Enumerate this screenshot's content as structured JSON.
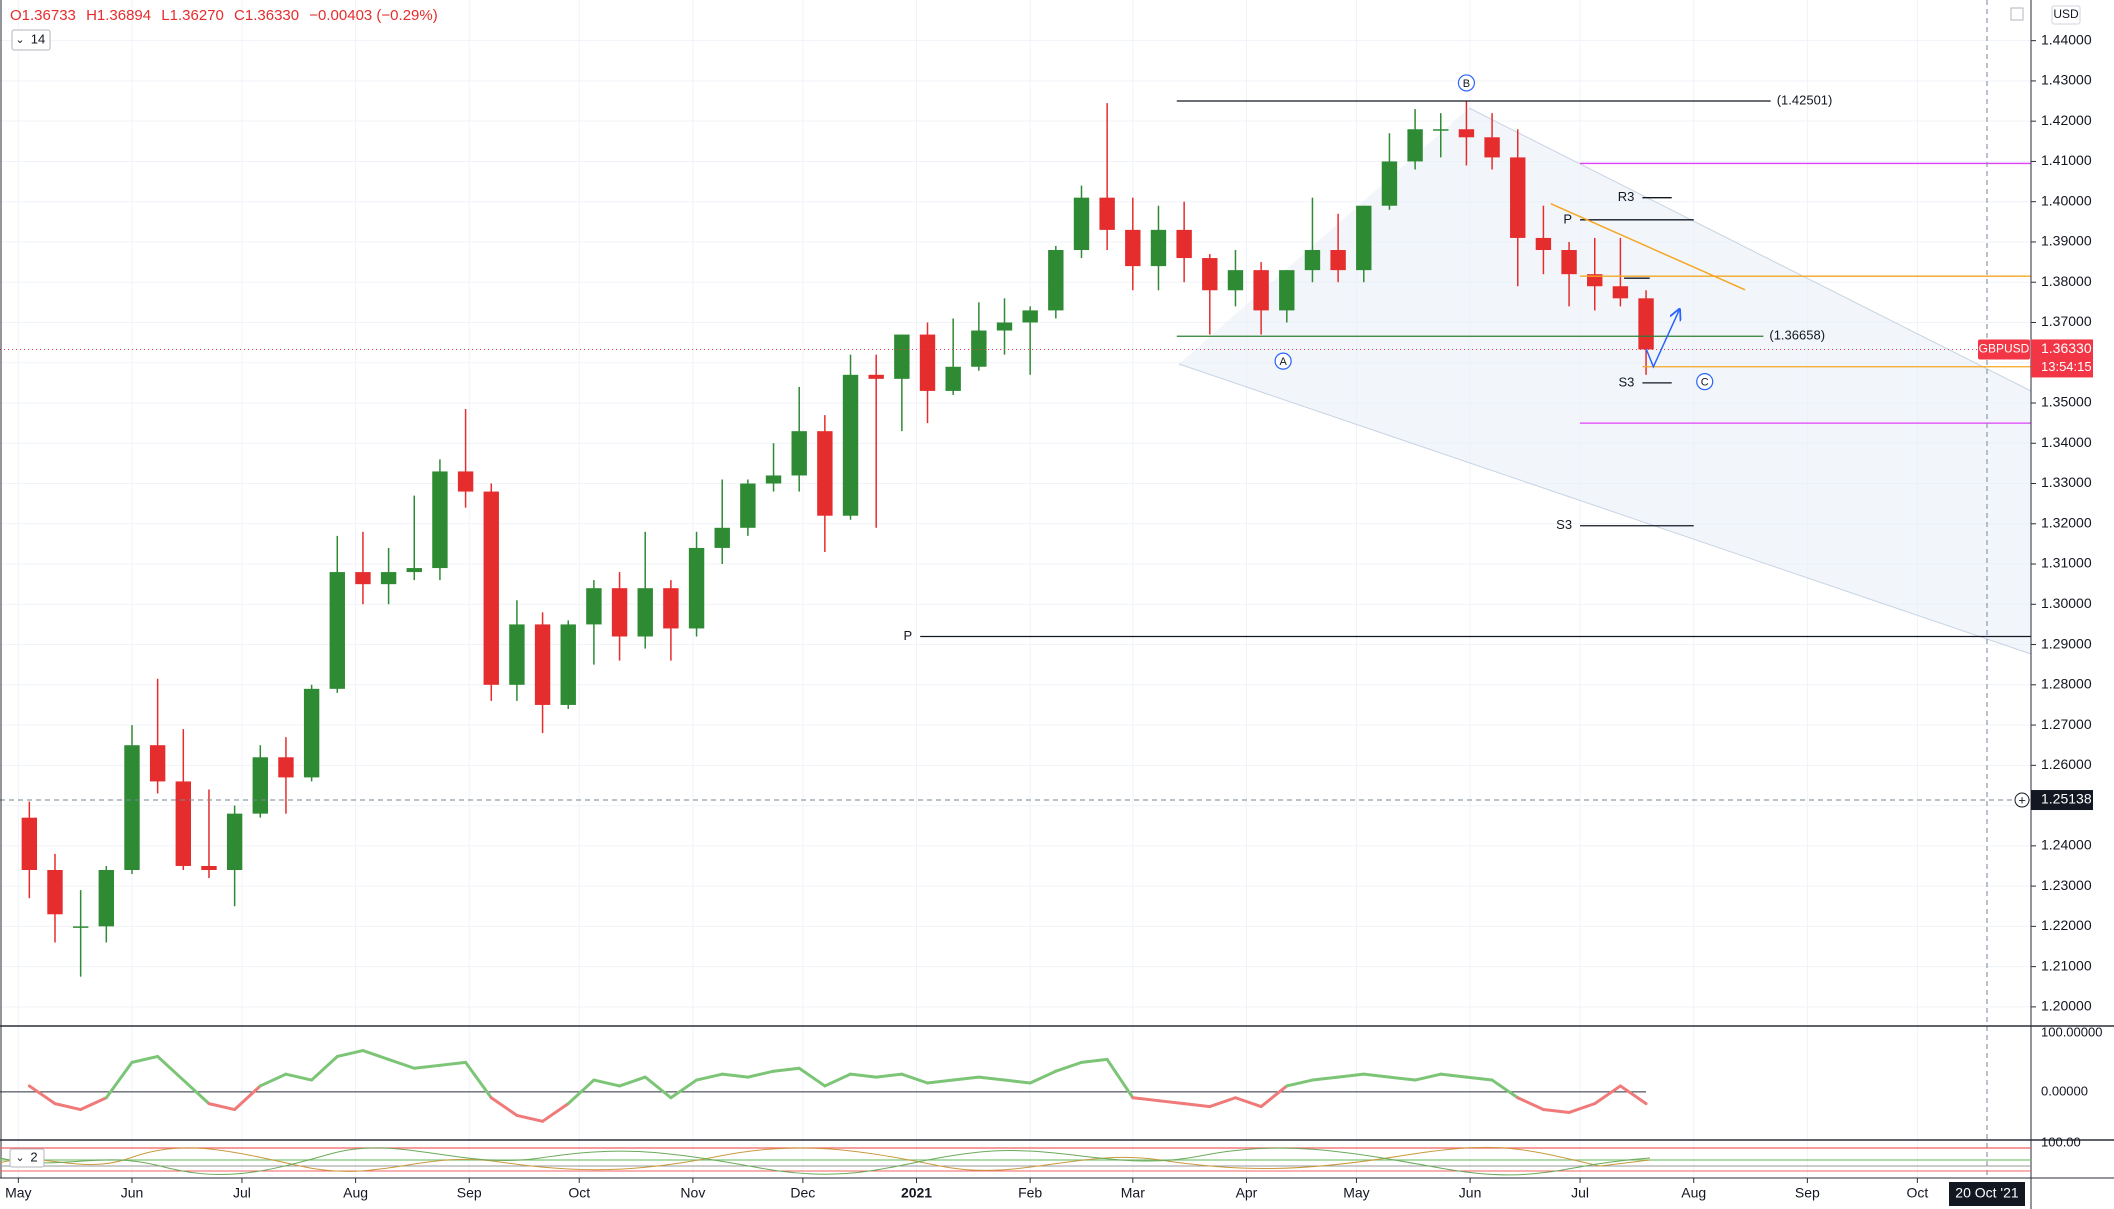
{
  "header": {
    "ohlc": [
      "O1.36733",
      "H1.36894",
      "L1.36270",
      "C1.36330",
      "−0.00403 (−0.29%)"
    ],
    "interval": "14",
    "currency": "USD",
    "panel_label": "2"
  },
  "chart_data": {
    "type": "candlestick",
    "up_color": "#2e8b34",
    "down_color": "#e52d2d",
    "grid": true,
    "xlim": [
      "2020-04-26",
      "2021-11-01"
    ],
    "xticks": [
      {
        "value": "2020-05-01",
        "label": "May"
      },
      {
        "value": "2020-06-01",
        "label": "Jun"
      },
      {
        "value": "2020-07-01",
        "label": "Jul"
      },
      {
        "value": "2020-08-01",
        "label": "Aug"
      },
      {
        "value": "2020-09-01",
        "label": "Sep"
      },
      {
        "value": "2020-10-01",
        "label": "Oct"
      },
      {
        "value": "2020-11-01",
        "label": "Nov"
      },
      {
        "value": "2020-12-01",
        "label": "Dec"
      },
      {
        "value": "2021-01-01",
        "label": "2021"
      },
      {
        "value": "2021-02-01",
        "label": "Feb"
      },
      {
        "value": "2021-03-01",
        "label": "Mar"
      },
      {
        "value": "2021-04-01",
        "label": "Apr"
      },
      {
        "value": "2021-05-01",
        "label": "May"
      },
      {
        "value": "2021-06-01",
        "label": "Jun"
      },
      {
        "value": "2021-07-01",
        "label": "Jul"
      },
      {
        "value": "2021-08-01",
        "label": "Aug"
      },
      {
        "value": "2021-09-01",
        "label": "Sep"
      },
      {
        "value": "2021-10-01",
        "label": "Oct"
      }
    ],
    "ylim": [
      1.1955,
      1.4501
    ],
    "yticks": [
      {
        "value": 1.2,
        "label": "1.20000"
      },
      {
        "value": 1.21,
        "label": "1.21000"
      },
      {
        "value": 1.22,
        "label": "1.22000"
      },
      {
        "value": 1.23,
        "label": "1.23000"
      },
      {
        "value": 1.24,
        "label": "1.24000"
      },
      {
        "value": 1.25,
        "label": "1.25000"
      },
      {
        "value": 1.26,
        "label": "1.26000"
      },
      {
        "value": 1.27,
        "label": "1.27000"
      },
      {
        "value": 1.28,
        "label": "1.28000"
      },
      {
        "value": 1.29,
        "label": "1.29000"
      },
      {
        "value": 1.3,
        "label": "1.30000"
      },
      {
        "value": 1.31,
        "label": "1.31000"
      },
      {
        "value": 1.32,
        "label": "1.32000"
      },
      {
        "value": 1.33,
        "label": "1.33000"
      },
      {
        "value": 1.34,
        "label": "1.34000"
      },
      {
        "value": 1.35,
        "label": "1.35000"
      },
      {
        "value": 1.36,
        "label": "1.36000"
      },
      {
        "value": 1.37,
        "label": "1.37000"
      },
      {
        "value": 1.38,
        "label": "1.38000"
      },
      {
        "value": 1.39,
        "label": "1.39000"
      },
      {
        "value": 1.4,
        "label": "1.40000"
      },
      {
        "value": 1.41,
        "label": "1.41000"
      },
      {
        "value": 1.42,
        "label": "1.42000"
      },
      {
        "value": 1.43,
        "label": "1.43000"
      },
      {
        "value": 1.44,
        "label": "1.44000"
      }
    ],
    "x": [
      "2020-05-04",
      "2020-05-11",
      "2020-05-18",
      "2020-05-25",
      "2020-06-01",
      "2020-06-08",
      "2020-06-15",
      "2020-06-22",
      "2020-06-29",
      "2020-07-06",
      "2020-07-13",
      "2020-07-20",
      "2020-07-27",
      "2020-08-03",
      "2020-08-10",
      "2020-08-17",
      "2020-08-24",
      "2020-08-31",
      "2020-09-07",
      "2020-09-14",
      "2020-09-21",
      "2020-09-28",
      "2020-10-05",
      "2020-10-12",
      "2020-10-19",
      "2020-10-26",
      "2020-11-02",
      "2020-11-09",
      "2020-11-16",
      "2020-11-23",
      "2020-11-30",
      "2020-12-07",
      "2020-12-14",
      "2020-12-21",
      "2020-12-28",
      "2021-01-04",
      "2021-01-11",
      "2021-01-18",
      "2021-01-25",
      "2021-02-01",
      "2021-02-08",
      "2021-02-15",
      "2021-02-22",
      "2021-03-01",
      "2021-03-08",
      "2021-03-15",
      "2021-03-22",
      "2021-03-29",
      "2021-04-05",
      "2021-04-12",
      "2021-04-19",
      "2021-04-26",
      "2021-05-03",
      "2021-05-10",
      "2021-05-17",
      "2021-05-24",
      "2021-05-31",
      "2021-06-07",
      "2021-06-14",
      "2021-06-21",
      "2021-06-28",
      "2021-07-05",
      "2021-07-12",
      "2021-07-19"
    ],
    "open": [
      1.247,
      1.234,
      1.22,
      1.22,
      1.234,
      1.265,
      1.256,
      1.235,
      1.234,
      1.248,
      1.262,
      1.257,
      1.279,
      1.308,
      1.305,
      1.308,
      1.309,
      1.333,
      1.328,
      1.28,
      1.295,
      1.275,
      1.295,
      1.304,
      1.292,
      1.304,
      1.294,
      1.314,
      1.319,
      1.33,
      1.332,
      1.343,
      1.322,
      1.357,
      1.356,
      1.367,
      1.353,
      1.359,
      1.368,
      1.37,
      1.373,
      1.388,
      1.401,
      1.393,
      1.384,
      1.393,
      1.386,
      1.378,
      1.383,
      1.373,
      1.383,
      1.388,
      1.383,
      1.399,
      1.41,
      1.418,
      1.418,
      1.416,
      1.411,
      1.391,
      1.388,
      1.382,
      1.379,
      1.376
    ],
    "high": [
      1.251,
      1.238,
      1.229,
      1.235,
      1.27,
      1.2815,
      1.269,
      1.254,
      1.25,
      1.265,
      1.267,
      1.28,
      1.317,
      1.318,
      1.314,
      1.327,
      1.336,
      1.3485,
      1.33,
      1.301,
      1.298,
      1.296,
      1.306,
      1.308,
      1.318,
      1.306,
      1.318,
      1.331,
      1.331,
      1.34,
      1.354,
      1.347,
      1.362,
      1.362,
      1.367,
      1.37,
      1.371,
      1.375,
      1.376,
      1.374,
      1.389,
      1.404,
      1.4245,
      1.401,
      1.399,
      1.4,
      1.387,
      1.388,
      1.385,
      1.383,
      1.401,
      1.397,
      1.399,
      1.417,
      1.423,
      1.422,
      1.425,
      1.422,
      1.418,
      1.399,
      1.39,
      1.391,
      1.391,
      1.378
    ],
    "low": [
      1.227,
      1.216,
      1.2075,
      1.216,
      1.233,
      1.253,
      1.234,
      1.232,
      1.225,
      1.247,
      1.248,
      1.256,
      1.278,
      1.3,
      1.3,
      1.306,
      1.306,
      1.324,
      1.276,
      1.276,
      1.268,
      1.274,
      1.285,
      1.286,
      1.289,
      1.286,
      1.292,
      1.31,
      1.317,
      1.328,
      1.328,
      1.313,
      1.321,
      1.319,
      1.343,
      1.345,
      1.352,
      1.358,
      1.362,
      1.357,
      1.371,
      1.386,
      1.388,
      1.378,
      1.378,
      1.38,
      1.367,
      1.374,
      1.367,
      1.37,
      1.38,
      1.38,
      1.38,
      1.398,
      1.408,
      1.411,
      1.409,
      1.408,
      1.379,
      1.382,
      1.374,
      1.373,
      1.374,
      1.357
    ],
    "close": [
      1.234,
      1.223,
      1.22,
      1.234,
      1.265,
      1.256,
      1.235,
      1.234,
      1.248,
      1.262,
      1.257,
      1.279,
      1.308,
      1.305,
      1.308,
      1.309,
      1.333,
      1.328,
      1.28,
      1.295,
      1.275,
      1.295,
      1.304,
      1.292,
      1.304,
      1.294,
      1.314,
      1.319,
      1.33,
      1.332,
      1.343,
      1.322,
      1.357,
      1.356,
      1.367,
      1.353,
      1.359,
      1.368,
      1.37,
      1.373,
      1.388,
      1.401,
      1.393,
      1.384,
      1.393,
      1.386,
      1.378,
      1.383,
      1.373,
      1.383,
      1.388,
      1.383,
      1.399,
      1.41,
      1.418,
      1.418,
      1.416,
      1.411,
      1.391,
      1.388,
      1.382,
      1.379,
      1.376,
      1.3633
    ],
    "price_lines": [
      {
        "value": 1.42501,
        "label": "(1.42501)",
        "start": "2021-03-13",
        "end": "2021-08-22",
        "color": "#131722"
      },
      {
        "value": 1.36658,
        "label": "(1.36658)",
        "start": "2021-03-13",
        "end": "2021-08-20",
        "color": "#2e7d32"
      }
    ],
    "pivots": [
      {
        "value": 1.292,
        "label": "P",
        "start": "2021-01-02",
        "end": "2021-11-01",
        "color": "#131722"
      },
      {
        "value": 1.3195,
        "label": "S3",
        "start": "2021-07-01",
        "end": "2021-08-01",
        "color": "#131722"
      },
      {
        "value": 1.3955,
        "label": "P",
        "start": "2021-07-01",
        "end": "2021-08-01",
        "color": "#131722"
      },
      {
        "value": 1.401,
        "label": "R3",
        "start": "2021-07-18",
        "end": "2021-07-26",
        "color": "#131722"
      },
      {
        "value": 1.355,
        "label": "S3",
        "start": "2021-07-18",
        "end": "2021-07-26",
        "color": "#131722"
      }
    ],
    "lines": [
      {
        "value": 1.4095,
        "start": "2021-07-01",
        "end": "2021-11-01",
        "color": "#e040fb"
      },
      {
        "value": 1.345,
        "start": "2021-07-01",
        "end": "2021-11-01",
        "color": "#e040fb"
      },
      {
        "value": 1.3815,
        "start": "2021-07-01",
        "end": "2021-11-01",
        "color": "#f5a623"
      },
      {
        "value": 1.359,
        "start": "2021-07-18",
        "end": "2021-11-01",
        "color": "#f5a623"
      },
      {
        "value": 1.381,
        "start": "2021-07-13",
        "end": "2021-07-20",
        "color": "#131722"
      }
    ],
    "trendlines": [
      {
        "x": [
          "2021-06-23",
          "2021-08-15"
        ],
        "values": [
          1.3995,
          1.3781
        ],
        "color": "#f5a623",
        "arrow": false
      },
      {
        "x": [
          "2021-07-19",
          "2021-07-21",
          "2021-07-28"
        ],
        "values": [
          1.3635,
          1.359,
          1.373
        ],
        "color": "#2962ff",
        "arrow": true
      }
    ],
    "waves": [
      {
        "label": "A",
        "x": "2021-04-11",
        "value": 1.3604
      },
      {
        "label": "B",
        "x": "2021-05-31",
        "value": 1.4295
      },
      {
        "label": "C",
        "x": "2021-08-04",
        "value": 1.3553
      }
    ],
    "last": {
      "name": "GBPUSD",
      "value": 1.3633,
      "label": "1.36330",
      "countdown": "13:54:15",
      "color": "#f23645"
    },
    "crosshair": {
      "value": 1.25138,
      "label": "1.25138",
      "x": "2021-10-20",
      "x_label": "20 Oct '21"
    },
    "oscillator": {
      "ylim": [
        -80,
        110
      ],
      "yticks": [
        {
          "value": 0,
          "label": "0.00000"
        },
        {
          "value": 100,
          "label": "100.00000"
        }
      ],
      "up_color": "#7cc576",
      "down_color": "#f07a7a",
      "values": [
        10,
        -20,
        -30,
        -10,
        50,
        60,
        20,
        -20,
        -30,
        10,
        30,
        20,
        60,
        70,
        55,
        40,
        45,
        50,
        -10,
        -40,
        -50,
        -20,
        20,
        10,
        25,
        -10,
        20,
        30,
        25,
        35,
        40,
        10,
        30,
        25,
        30,
        15,
        20,
        25,
        20,
        15,
        35,
        50,
        55,
        -10,
        -15,
        -20,
        -25,
        -10,
        -25,
        10,
        20,
        25,
        30,
        25,
        20,
        30,
        25,
        20,
        -10,
        -30,
        -35,
        -20,
        10,
        -20
      ]
    },
    "lower_panel": {
      "yticks": [
        {
          "value": 100,
          "label": "100.00"
        }
      ]
    }
  }
}
